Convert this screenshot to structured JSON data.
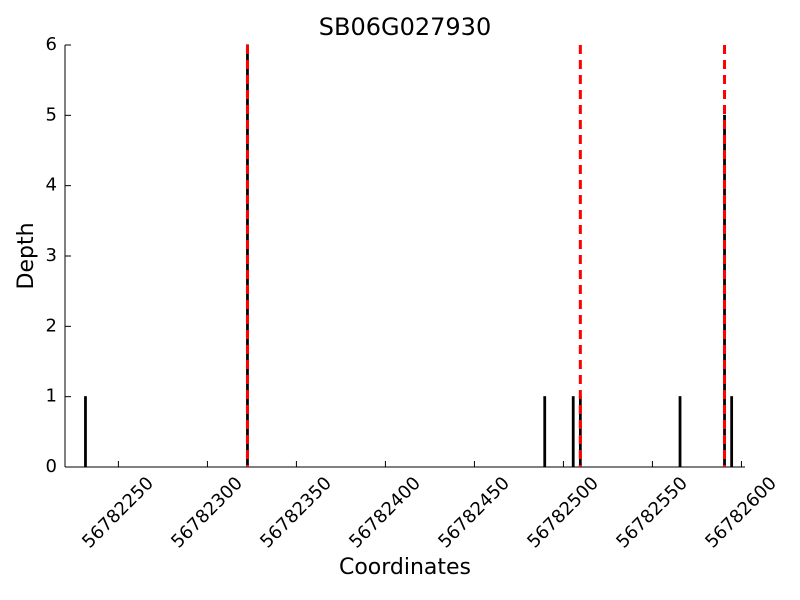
{
  "chart_data": {
    "type": "bar",
    "title": "SB06G027930",
    "xlabel": "Coordinates",
    "ylabel": "Depth",
    "x": [
      56782231,
      56782322,
      56782489,
      56782505,
      56782509,
      56782565,
      56782590,
      56782594
    ],
    "values": [
      1,
      6,
      1,
      1,
      1,
      1,
      5,
      1
    ],
    "color": "#000000",
    "markers": [
      56782322,
      56782509,
      56782590
    ],
    "marker_color": "#ff0000",
    "xlim": [
      56782220,
      56782602
    ],
    "xticks": [
      56782250,
      56782300,
      56782350,
      56782400,
      56782450,
      56782500,
      56782550,
      56782600
    ],
    "ylim": [
      0,
      6
    ],
    "yticks": [
      0,
      1,
      2,
      3,
      4,
      5,
      6
    ],
    "grid": false
  }
}
